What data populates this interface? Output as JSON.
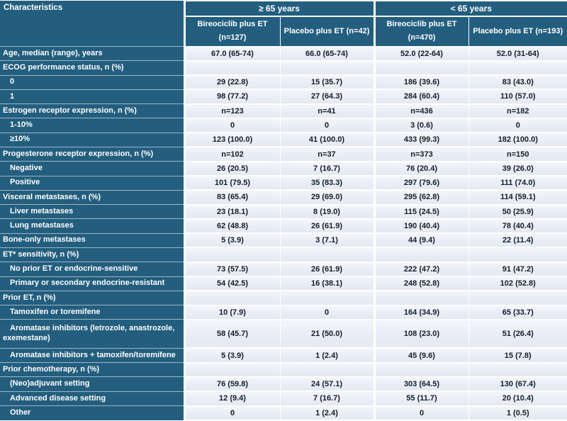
{
  "colors": {
    "header_blue": "#235E7E",
    "row_light": "#EDF0F6",
    "value_text": "#141C2B",
    "divider_white": "#FFFFFF"
  },
  "table": {
    "characteristics_header": "Characteristics",
    "groups": [
      {
        "label": "≥ 65 years",
        "columns": [
          "Bireociclib plus ET (n=127)",
          "Placebo plus ET (n=42)"
        ]
      },
      {
        "label": "< 65 years",
        "columns": [
          "Bireociclib plus ET (n=470)",
          "Placebo plus ET (n=193)"
        ]
      }
    ],
    "rows": [
      {
        "label": "Age, median (range), years",
        "indent": false,
        "values": [
          "67.0 (65-74)",
          "66.0 (65-74)",
          "52.0 (22-64)",
          "52.0 (31-64)"
        ]
      },
      {
        "label": "ECOG performance status, n (%)",
        "indent": false,
        "values": [
          "",
          "",
          "",
          ""
        ]
      },
      {
        "label": "0",
        "indent": true,
        "values": [
          "29 (22.8)",
          "15 (35.7)",
          "186 (39.6)",
          "83 (43.0)"
        ]
      },
      {
        "label": "1",
        "indent": true,
        "values": [
          "98 (77.2)",
          "27 (64.3)",
          "284 (60.4)",
          "110 (57.0)"
        ]
      },
      {
        "label": "Estrogen receptor expression, n (%)",
        "indent": false,
        "values": [
          "n=123",
          "n=41",
          "n=436",
          "n=182"
        ]
      },
      {
        "label": "1-10%",
        "indent": true,
        "values": [
          "0",
          "0",
          "3 (0.6)",
          "0"
        ]
      },
      {
        "label": "≥10%",
        "indent": true,
        "values": [
          "123 (100.0)",
          "41 (100.0)",
          "433 (99.3)",
          "182 (100.0)"
        ]
      },
      {
        "label": "Progesterone receptor expression, n (%)",
        "indent": false,
        "values": [
          "n=102",
          "n=37",
          "n=373",
          "n=150"
        ]
      },
      {
        "label": "Negative",
        "indent": true,
        "values": [
          "26 (20.5)",
          "7 (16.7)",
          "76 (20.4)",
          "39 (26.0)"
        ]
      },
      {
        "label": "Positive",
        "indent": true,
        "values": [
          "101 (79.5)",
          "35 (83.3)",
          "297 (79.6)",
          "111 (74.0)"
        ]
      },
      {
        "label": "Visceral metastases, n (%)",
        "indent": false,
        "values": [
          "83 (65.4)",
          "29 (69.0)",
          "295 (62.8)",
          "114 (59.1)"
        ]
      },
      {
        "label": "Liver metastases",
        "indent": true,
        "values": [
          "23 (18.1)",
          "8 (19.0)",
          "115 (24.5)",
          "50 (25.9)"
        ]
      },
      {
        "label": "Lung metastases",
        "indent": true,
        "values": [
          "62 (48.8)",
          "26 (61.9)",
          "190 (40.4)",
          "78 (40.4)"
        ]
      },
      {
        "label": "Bone-only metastases",
        "indent": false,
        "values": [
          "5 (3.9)",
          "3 (7.1)",
          "44 (9.4)",
          "22 (11.4)"
        ]
      },
      {
        "label": "ET* sensitivity, n (%)",
        "indent": false,
        "values": [
          "",
          "",
          "",
          ""
        ]
      },
      {
        "label": "No prior ET or endocrine-sensitive",
        "indent": true,
        "values": [
          "73 (57.5)",
          "26 (61.9)",
          "222 (47.2)",
          "91 (47.2)"
        ]
      },
      {
        "label": "Primary or secondary endocrine-resistant",
        "indent": true,
        "values": [
          "54 (42.5)",
          "16 (38.1)",
          "248 (52.8)",
          "102 (52.8)"
        ]
      },
      {
        "label": "Prior ET, n (%)",
        "indent": false,
        "values": [
          "",
          "",
          "",
          ""
        ]
      },
      {
        "label": "Tamoxifen or toremifene",
        "indent": true,
        "values": [
          "10 (7.9)",
          "0",
          "164 (34.9)",
          "65 (33.7)"
        ]
      },
      {
        "label": "Aromatase inhibitors (letrozole, anastrozole, exemestane)",
        "indent": true,
        "tall": true,
        "values": [
          "58 (45.7)",
          "21 (50.0)",
          "108 (23.0)",
          "51 (26.4)"
        ]
      },
      {
        "label": "Aromatase inhibitors + tamoxifen/toremifene",
        "indent": true,
        "values": [
          "5 (3.9)",
          "1 (2.4)",
          "45 (9.6)",
          "15 (7.8)"
        ]
      },
      {
        "label": "Prior chemotherapy, n (%)",
        "indent": false,
        "values": [
          "",
          "",
          "",
          ""
        ]
      },
      {
        "label": "(Neo)adjuvant setting",
        "indent": true,
        "values": [
          "76 (59.8)",
          "24 (57.1)",
          "303 (64.5)",
          "130 (67.4)"
        ]
      },
      {
        "label": "Advanced disease setting",
        "indent": true,
        "values": [
          "12 (9.4)",
          "7 (16.7)",
          "55 (11.7)",
          "20 (10.4)"
        ]
      },
      {
        "label": "Other",
        "indent": true,
        "values": [
          "0",
          "1 (2.4)",
          "0",
          "1 (0.5)"
        ]
      }
    ]
  }
}
